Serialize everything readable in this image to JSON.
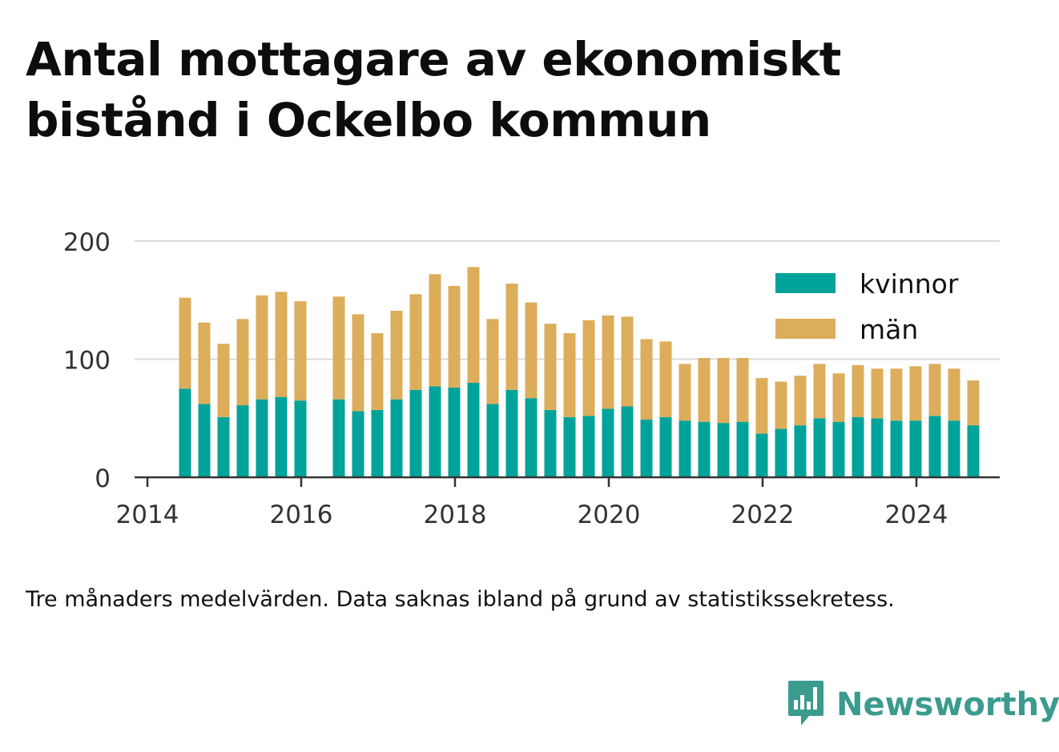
{
  "title": "Antal mottagare av ekonomiskt bistånd i Ockelbo kommun",
  "footnote": "Tre månaders medelvärden. Data saknas ibland på grund av statistikssekretess.",
  "brand": {
    "name": "Newsworthy",
    "color": "#3a9b8e",
    "logo_icon": "bar-chart-speech-bubble-icon"
  },
  "colors": {
    "kvinnor": "#00a39a",
    "man": "#dcad5a",
    "grid": "#d9d9d9",
    "axis": "#333333"
  },
  "chart_data": {
    "type": "bar",
    "stacked": true,
    "title": "Antal mottagare av ekonomiskt bistånd i Ockelbo kommun",
    "xlabel": "",
    "ylabel": "",
    "ylim": [
      0,
      200
    ],
    "yticks": [
      "0",
      "100",
      "200"
    ],
    "xticks": [
      "2014",
      "2016",
      "2018",
      "2020",
      "2022",
      "2024"
    ],
    "xlim": [
      "2013-11",
      "2025-02"
    ],
    "grid": true,
    "legend": {
      "position": "top-right",
      "entries": [
        "kvinnor",
        "män"
      ]
    },
    "dates": [
      "2014-05",
      "2014-08",
      "2014-11",
      "2015-02",
      "2015-05",
      "2015-08",
      "2015-11",
      "2016-05",
      "2016-08",
      "2016-11",
      "2017-02",
      "2017-05",
      "2017-08",
      "2017-11",
      "2018-02",
      "2018-05",
      "2018-08",
      "2018-11",
      "2019-02",
      "2019-05",
      "2019-08",
      "2019-11",
      "2020-02",
      "2020-05",
      "2020-08",
      "2020-11",
      "2021-02",
      "2021-05",
      "2021-08",
      "2021-11",
      "2022-02",
      "2022-05",
      "2022-08",
      "2022-11",
      "2023-02",
      "2023-05",
      "2023-08",
      "2023-11",
      "2024-02",
      "2024-05",
      "2024-08"
    ],
    "series": [
      {
        "name": "kvinnor",
        "values": [
          75,
          62,
          51,
          61,
          66,
          68,
          65,
          66,
          56,
          57,
          66,
          74,
          77,
          76,
          80,
          62,
          74,
          67,
          57,
          51,
          52,
          58,
          60,
          49,
          51,
          48,
          47,
          46,
          47,
          37,
          41,
          44,
          50,
          47,
          51,
          50,
          48,
          48,
          52,
          48,
          44
        ]
      },
      {
        "name": "män",
        "values": [
          77,
          69,
          62,
          73,
          88,
          89,
          84,
          87,
          82,
          65,
          75,
          81,
          95,
          86,
          98,
          72,
          90,
          81,
          73,
          71,
          81,
          79,
          76,
          68,
          64,
          48,
          54,
          55,
          54,
          47,
          40,
          42,
          46,
          41,
          44,
          42,
          44,
          46,
          44,
          44,
          38
        ]
      }
    ]
  }
}
